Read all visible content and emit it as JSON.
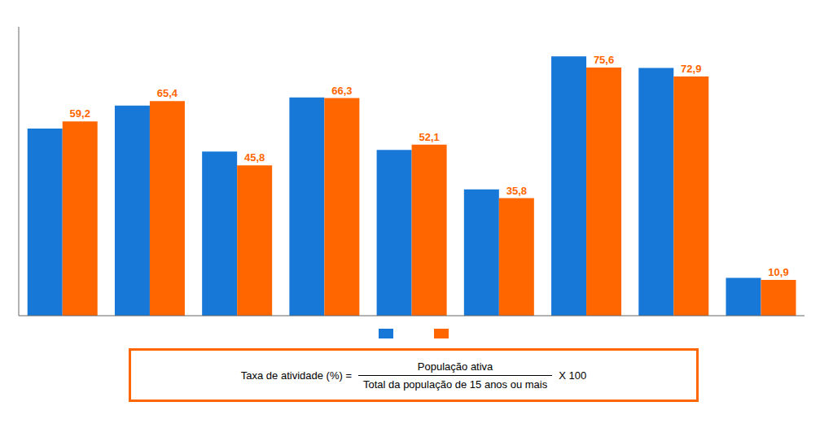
{
  "chart_data": {
    "type": "bar",
    "categories": [
      null,
      null,
      null,
      null,
      null,
      null,
      null,
      null,
      null
    ],
    "series": [
      {
        "color": "#1878D8",
        "values": [
          57.0,
          64.0,
          50.0,
          66.5,
          50.5,
          38.5,
          79.0,
          75.5,
          11.5
        ]
      },
      {
        "color": "#FF6600",
        "values": [
          59.2,
          65.4,
          45.8,
          66.3,
          52.1,
          35.8,
          75.6,
          72.9,
          10.9
        ],
        "value_labels": [
          "59,2",
          "65,4",
          "45,8",
          "66,3",
          "52,1",
          "35,8",
          "75,6",
          "72,9",
          "10,9"
        ],
        "data_labels": true
      }
    ],
    "ylim": [
      0,
      88
    ],
    "tick_labels": false,
    "grid": false,
    "legend": "bottom",
    "annotations": [
      "Taxa de atividade (%) =",
      "População ativa",
      "Total da população de 15 anos ou mais",
      "X 100"
    ]
  }
}
